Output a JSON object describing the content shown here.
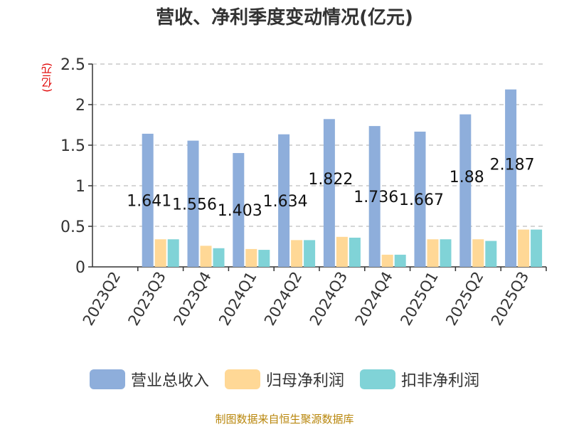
{
  "chart_data": {
    "type": "bar",
    "title": "营收、净利季度变动情况(亿元)",
    "ylabel": "(亿元)",
    "ylim": [
      0,
      2.5
    ],
    "yticks": [
      "0",
      "0.5",
      "1",
      "1.5",
      "2",
      "2.5"
    ],
    "categories": [
      "2023Q2",
      "2023Q3",
      "2023Q4",
      "2024Q1",
      "2024Q2",
      "2024Q3",
      "2024Q4",
      "2025Q1",
      "2025Q2",
      "2025Q3"
    ],
    "series": [
      {
        "name": "营业总收入",
        "color": "#8eaedb",
        "values": [
          null,
          1.641,
          1.556,
          1.403,
          1.634,
          1.822,
          1.736,
          1.667,
          1.88,
          2.187
        ]
      },
      {
        "name": "归母净利润",
        "color": "#ffd896",
        "values": [
          null,
          0.34,
          0.26,
          0.22,
          0.33,
          0.37,
          0.15,
          0.34,
          0.34,
          0.46
        ]
      },
      {
        "name": "扣非净利润",
        "color": "#80d3d7",
        "values": [
          null,
          0.34,
          0.23,
          0.21,
          0.33,
          0.36,
          0.15,
          0.34,
          0.32,
          0.46
        ]
      }
    ],
    "data_labels": [
      "",
      "1.641",
      "1.556",
      "1.403",
      "1.634",
      "1.822",
      "1.736",
      "1.667",
      "1.88",
      "2.187"
    ],
    "grid": true,
    "legend_position": "bottom"
  },
  "source_note": "制图数据来自恒生聚源数据库"
}
